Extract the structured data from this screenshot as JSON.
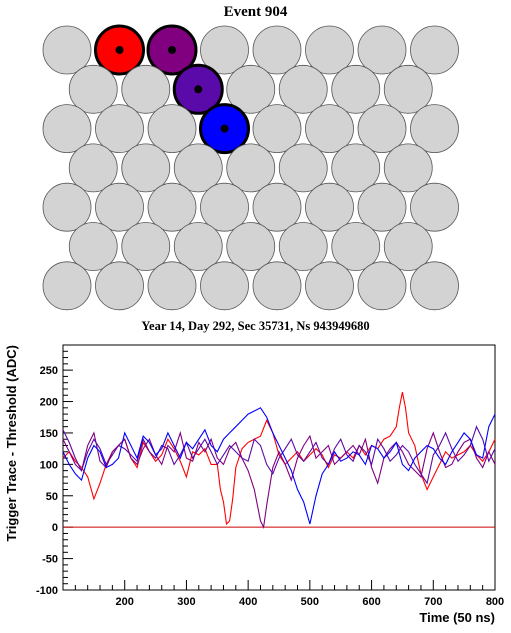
{
  "event_title": "Event 904",
  "time_caption": "Year 14, Day 292, Sec 35731, Ns 943949680",
  "colors": {
    "pmt_idle": "#d3d3d3",
    "pmt_hit_1": "#ff0000",
    "pmt_hit_2": "#800080",
    "pmt_hit_3": "#5a0aa8",
    "pmt_hit_4": "#0000ff",
    "baseline": "#cc0000"
  },
  "pmt_map": {
    "rows": [
      {
        "count": 8,
        "offset": false
      },
      {
        "count": 7,
        "offset": true
      },
      {
        "count": 8,
        "offset": false
      },
      {
        "count": 7,
        "offset": true
      },
      {
        "count": 8,
        "offset": false
      },
      {
        "count": 7,
        "offset": true
      },
      {
        "count": 8,
        "offset": false
      }
    ],
    "hits": [
      {
        "row": 0,
        "col": 1,
        "color": "#ff0000"
      },
      {
        "row": 0,
        "col": 2,
        "color": "#800080"
      },
      {
        "row": 1,
        "col": 2,
        "color": "#5a0aa8"
      },
      {
        "row": 2,
        "col": 3,
        "color": "#0000ff"
      }
    ]
  },
  "chart_data": {
    "type": "line",
    "title": "",
    "xlabel": "Time (50 ns)",
    "ylabel": "Trigger Trace - Threshold (ADC)",
    "xlim": [
      100,
      800
    ],
    "ylim": [
      -100,
      290
    ],
    "xticks": [
      200,
      300,
      400,
      500,
      600,
      700,
      800
    ],
    "yticks": [
      -100,
      -50,
      0,
      50,
      100,
      150,
      200,
      250
    ],
    "baseline_y": 0,
    "series": [
      {
        "color": "#ff0000",
        "x": [
          100,
          110,
          120,
          130,
          140,
          150,
          160,
          170,
          180,
          190,
          200,
          210,
          220,
          230,
          240,
          250,
          260,
          270,
          280,
          290,
          300,
          310,
          320,
          330,
          340,
          350,
          355,
          360,
          365,
          370,
          375,
          380,
          390,
          400,
          410,
          420,
          430,
          440,
          450,
          460,
          470,
          480,
          490,
          500,
          510,
          520,
          530,
          540,
          550,
          560,
          570,
          580,
          590,
          600,
          610,
          620,
          630,
          640,
          645,
          650,
          655,
          660,
          670,
          680,
          690,
          700,
          710,
          720,
          730,
          740,
          750,
          760,
          770,
          780,
          790,
          800
        ],
        "y": [
          110,
          120,
          105,
          95,
          80,
          45,
          70,
          100,
          120,
          130,
          140,
          110,
          95,
          135,
          120,
          105,
          115,
          140,
          125,
          105,
          80,
          120,
          115,
          125,
          100,
          100,
          60,
          40,
          5,
          10,
          45,
          95,
          125,
          135,
          140,
          145,
          170,
          150,
          115,
          100,
          110,
          120,
          105,
          115,
          125,
          115,
          95,
          115,
          110,
          120,
          110,
          130,
          115,
          130,
          125,
          140,
          145,
          160,
          190,
          215,
          190,
          150,
          130,
          85,
          60,
          80,
          100,
          120,
          110,
          115,
          120,
          130,
          115,
          105,
          120,
          140
        ]
      },
      {
        "color": "#800080",
        "x": [
          100,
          110,
          120,
          130,
          140,
          150,
          160,
          170,
          180,
          190,
          200,
          210,
          220,
          230,
          240,
          250,
          260,
          270,
          280,
          290,
          300,
          310,
          320,
          330,
          340,
          350,
          360,
          370,
          380,
          390,
          400,
          410,
          420,
          425,
          430,
          440,
          450,
          460,
          470,
          480,
          490,
          500,
          510,
          520,
          530,
          540,
          550,
          560,
          570,
          580,
          590,
          600,
          610,
          620,
          630,
          640,
          650,
          660,
          670,
          680,
          690,
          700,
          710,
          720,
          730,
          740,
          750,
          760,
          770,
          780,
          790,
          800
        ],
        "y": [
          140,
          120,
          100,
          90,
          130,
          150,
          105,
          95,
          120,
          130,
          140,
          110,
          100,
          125,
          140,
          115,
          100,
          130,
          120,
          150,
          110,
          105,
          135,
          120,
          140,
          110,
          100,
          125,
          135,
          110,
          90,
          60,
          10,
          0,
          35,
          95,
          120,
          100,
          75,
          110,
          130,
          145,
          110,
          120,
          130,
          100,
          110,
          120,
          130,
          115,
          140,
          95,
          70,
          110,
          125,
          135,
          120,
          100,
          90,
          80,
          125,
          150,
          120,
          95,
          100,
          120,
          135,
          140,
          110,
          95,
          120,
          100
        ]
      },
      {
        "color": "#5a0aa8",
        "x": [
          100,
          110,
          120,
          130,
          140,
          150,
          160,
          170,
          180,
          190,
          200,
          210,
          220,
          230,
          240,
          250,
          260,
          270,
          280,
          290,
          300,
          310,
          320,
          330,
          340,
          350,
          360,
          370,
          380,
          390,
          400,
          410,
          420,
          430,
          440,
          450,
          460,
          470,
          480,
          490,
          500,
          510,
          520,
          530,
          540,
          550,
          560,
          570,
          580,
          590,
          600,
          610,
          620,
          630,
          640,
          650,
          660,
          670,
          680,
          690,
          700,
          710,
          720,
          730,
          740,
          750,
          760,
          770,
          780,
          790,
          800
        ],
        "y": [
          155,
          135,
          110,
          90,
          120,
          140,
          125,
          100,
          115,
          130,
          125,
          115,
          105,
          140,
          120,
          110,
          130,
          125,
          100,
          115,
          135,
          110,
          125,
          140,
          120,
          100,
          115,
          130,
          120,
          110,
          105,
          140,
          130,
          100,
          85,
          110,
          125,
          140,
          115,
          105,
          120,
          135,
          110,
          100,
          125,
          140,
          115,
          105,
          130,
          120,
          100,
          140,
          125,
          105,
          115,
          130,
          120,
          100,
          85,
          70,
          115,
          130,
          150,
          125,
          105,
          115,
          130,
          160,
          140,
          105,
          125
        ]
      },
      {
        "color": "#0000ff",
        "x": [
          100,
          110,
          120,
          130,
          140,
          150,
          160,
          170,
          180,
          190,
          200,
          210,
          220,
          230,
          240,
          250,
          260,
          270,
          280,
          290,
          300,
          310,
          320,
          330,
          340,
          350,
          360,
          370,
          380,
          390,
          400,
          410,
          420,
          430,
          440,
          450,
          460,
          470,
          480,
          490,
          500,
          510,
          520,
          530,
          540,
          550,
          560,
          570,
          580,
          590,
          600,
          610,
          620,
          630,
          640,
          650,
          660,
          670,
          680,
          690,
          700,
          710,
          720,
          730,
          740,
          750,
          760,
          770,
          780,
          790,
          800
        ],
        "y": [
          120,
          100,
          85,
          75,
          110,
          130,
          120,
          95,
          100,
          110,
          150,
          130,
          110,
          145,
          135,
          115,
          125,
          150,
          130,
          110,
          135,
          125,
          140,
          155,
          130,
          120,
          140,
          150,
          160,
          170,
          180,
          185,
          190,
          175,
          150,
          130,
          110,
          90,
          60,
          40,
          5,
          50,
          85,
          100,
          120,
          105,
          110,
          120,
          115,
          100,
          130,
          125,
          110,
          120,
          135,
          100,
          90,
          110,
          120,
          130,
          125,
          110,
          100,
          120,
          135,
          150,
          140,
          115,
          110,
          160,
          180
        ]
      }
    ]
  }
}
